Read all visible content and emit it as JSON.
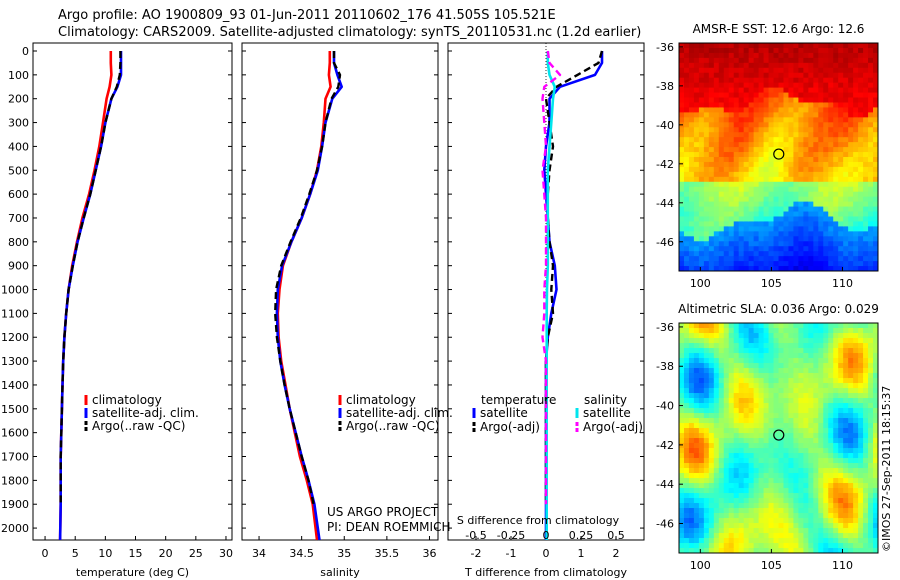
{
  "header": {
    "line1": "Argo profile: AO 1900809_93 01-Jun-2011 20110602_176 41.505S 105.521E",
    "line2": "Climatology: CARS2009. Satellite-adjusted climatology: synTS_20110531.nc (1.2d earlier)"
  },
  "side_text": "©IMOS 27-Sep-2011 18:15:37",
  "project_text": [
    "US ARGO PROJECT",
    "PI: DEAN ROEMMICH"
  ],
  "colors": {
    "climatology": "#ff0000",
    "satellite": "#0000ff",
    "argo": "#000000",
    "sat_salinity": "#00e5ee",
    "argo_salinity": "#ff00ff"
  },
  "chart_data": [
    {
      "type": "line",
      "name": "temperature",
      "xlabel": "temperature (deg C)",
      "xlim": [
        -2,
        31
      ],
      "xticks": [
        0,
        5,
        10,
        15,
        20,
        25,
        30
      ],
      "ylim": [
        0,
        2050
      ],
      "yticks": [
        0,
        100,
        200,
        300,
        400,
        500,
        600,
        700,
        800,
        900,
        1000,
        1100,
        1200,
        1300,
        1400,
        1500,
        1600,
        1700,
        1800,
        1900,
        2000
      ],
      "legend": [
        "climatology",
        "satellite-adj. clim.",
        "Argo(..raw -QC)"
      ],
      "series": [
        {
          "name": "climatology",
          "color": "#ff0000",
          "x": [
            10.9,
            10.9,
            11.0,
            10.7,
            10.2,
            9.6,
            9.0,
            8.2,
            7.3,
            6.2,
            5.3,
            4.5,
            3.9,
            3.5,
            3.2,
            3.0,
            2.9,
            2.8,
            2.7,
            2.6,
            2.6,
            2.5
          ],
          "y": [
            0,
            50,
            100,
            150,
            200,
            300,
            400,
            500,
            600,
            700,
            800,
            900,
            1000,
            1100,
            1200,
            1300,
            1400,
            1500,
            1600,
            1700,
            1900,
            2050
          ]
        },
        {
          "name": "satellite-adj. clim.",
          "color": "#0000ff",
          "x": [
            12.6,
            12.6,
            12.6,
            12.0,
            11.0,
            10.0,
            9.3,
            8.4,
            7.5,
            6.4,
            5.4,
            4.6,
            3.9,
            3.5,
            3.2,
            3.0,
            2.9,
            2.8,
            2.7,
            2.6,
            2.6,
            2.5
          ],
          "y": [
            0,
            50,
            100,
            150,
            200,
            300,
            400,
            500,
            600,
            700,
            800,
            900,
            1000,
            1100,
            1200,
            1300,
            1400,
            1500,
            1600,
            1700,
            1900,
            2050
          ]
        },
        {
          "name": "Argo(..raw -QC)",
          "color": "#000000",
          "x": [
            12.5,
            12.5,
            12.4,
            11.9,
            11.0,
            10.0,
            9.3,
            8.4,
            7.5,
            6.4,
            5.4,
            4.6,
            3.9,
            3.5,
            3.2,
            3.0,
            2.9,
            2.8,
            2.7,
            2.6,
            2.6
          ],
          "y": [
            0,
            50,
            100,
            150,
            200,
            300,
            400,
            500,
            600,
            700,
            800,
            900,
            1000,
            1100,
            1200,
            1300,
            1400,
            1500,
            1600,
            1700,
            1900
          ]
        }
      ]
    },
    {
      "type": "line",
      "name": "salinity",
      "xlabel": "salinity",
      "xlim": [
        33.8,
        36.1
      ],
      "xticks": [
        34,
        34.5,
        35,
        35.5,
        36
      ],
      "ylim": [
        0,
        2050
      ],
      "legend": [
        "climatology",
        "satellite-adj. clim.",
        "Argo(..raw -QC)"
      ],
      "series": [
        {
          "name": "climatology",
          "color": "#ff0000",
          "x": [
            34.83,
            34.83,
            34.82,
            34.84,
            34.78,
            34.76,
            34.73,
            34.68,
            34.6,
            34.5,
            34.38,
            34.28,
            34.24,
            34.22,
            34.23,
            34.26,
            34.31,
            34.36,
            34.42,
            34.48,
            34.56,
            34.63,
            34.68
          ],
          "y": [
            0,
            50,
            100,
            150,
            200,
            300,
            400,
            500,
            600,
            700,
            800,
            900,
            1000,
            1100,
            1200,
            1300,
            1400,
            1500,
            1600,
            1700,
            1800,
            1900,
            2050
          ]
        },
        {
          "name": "satellite-adj. clim.",
          "color": "#0000ff",
          "x": [
            34.88,
            34.88,
            34.92,
            34.97,
            34.86,
            34.78,
            34.74,
            34.69,
            34.6,
            34.5,
            34.38,
            34.27,
            34.22,
            34.21,
            34.22,
            34.25,
            34.3,
            34.36,
            34.43,
            34.5,
            34.58,
            34.65,
            34.71
          ],
          "y": [
            0,
            50,
            100,
            150,
            200,
            300,
            400,
            500,
            600,
            700,
            800,
            900,
            1000,
            1100,
            1200,
            1300,
            1400,
            1500,
            1600,
            1700,
            1800,
            1900,
            2050
          ]
        },
        {
          "name": "Argo(..raw -QC)",
          "color": "#000000",
          "x": [
            34.88,
            34.88,
            34.95,
            34.93,
            34.85,
            34.78,
            34.74,
            34.68,
            34.59,
            34.49,
            34.37,
            34.26,
            34.2,
            34.19,
            34.21,
            34.25,
            34.3,
            34.36,
            34.43,
            34.5,
            34.58,
            34.64
          ],
          "y": [
            0,
            50,
            100,
            150,
            200,
            300,
            400,
            500,
            600,
            700,
            800,
            900,
            1000,
            1100,
            1200,
            1300,
            1400,
            1500,
            1600,
            1700,
            1800,
            1900
          ]
        }
      ]
    },
    {
      "type": "line",
      "name": "difference",
      "xlabel": "T difference from climatology",
      "xlabel_top": "S difference from climatology",
      "xlim": [
        -2.8,
        2.8
      ],
      "xticks": [
        -2,
        -1,
        0,
        1,
        2
      ],
      "xticks_top": [
        -0.5,
        -0.25,
        0,
        0.25,
        0.5
      ],
      "ylim": [
        0,
        2050
      ],
      "legend_headers": [
        "temperature",
        "salinity"
      ],
      "legend": [
        "satellite",
        "Argo(-adj)",
        "satellite",
        "Argo(-adj)"
      ],
      "series": [
        {
          "name": "temperature satellite",
          "color": "#0000ff",
          "x": [
            1.6,
            1.6,
            1.4,
            0.4,
            0.1,
            0.1,
            0.0,
            -0.05,
            0.0,
            0.05,
            0.1,
            0.25,
            0.3,
            0.15,
            0.05,
            0.0,
            0.0,
            0.0,
            0.0,
            0.0,
            0.0,
            0.0
          ],
          "y": [
            0,
            50,
            100,
            150,
            200,
            300,
            400,
            500,
            600,
            700,
            800,
            900,
            1000,
            1100,
            1200,
            1300,
            1400,
            1500,
            1600,
            1700,
            1900,
            2050
          ]
        },
        {
          "name": "temperature Argo(-adj)",
          "color": "#000000",
          "x": [
            1.6,
            1.5,
            0.9,
            0.3,
            0.0,
            0.1,
            0.2,
            0.1,
            0.05,
            0.05,
            0.1,
            0.2,
            0.15,
            0.2,
            0.05,
            0.0,
            0.0,
            0.0,
            0.0,
            0.0,
            0.0
          ],
          "y": [
            0,
            50,
            100,
            150,
            200,
            300,
            400,
            500,
            600,
            700,
            800,
            900,
            1000,
            1100,
            1200,
            1300,
            1400,
            1500,
            1600,
            1700,
            1900
          ]
        },
        {
          "name": "salinity satellite",
          "color": "#00e5ee",
          "x": [
            0.05,
            0.05,
            0.1,
            0.25,
            0.2,
            0.15,
            0.1,
            0.05,
            0.05,
            0.05,
            0.05,
            0.05,
            0.03,
            0.02,
            0.02,
            0.02,
            0.02,
            0.02,
            0.02,
            0.02,
            0.02,
            0.02
          ],
          "y": [
            0,
            50,
            100,
            150,
            200,
            300,
            400,
            500,
            600,
            700,
            800,
            900,
            1000,
            1100,
            1200,
            1300,
            1400,
            1500,
            1600,
            1700,
            1900,
            2050
          ]
        },
        {
          "name": "salinity Argo(-adj)",
          "color": "#ff00ff",
          "x": [
            0.05,
            0.1,
            0.4,
            -0.05,
            -0.1,
            -0.05,
            0.0,
            -0.1,
            -0.05,
            0.0,
            0.0,
            0.0,
            -0.05,
            -0.05,
            -0.1,
            0.0,
            0.0,
            0.0,
            0.0,
            0.0,
            0.0
          ],
          "y": [
            0,
            50,
            100,
            150,
            200,
            300,
            400,
            500,
            600,
            700,
            800,
            900,
            1000,
            1100,
            1200,
            1300,
            1400,
            1500,
            1600,
            1700,
            1900
          ]
        }
      ]
    },
    {
      "type": "heatmap",
      "name": "sst-map",
      "title": "AMSR-E SST: 12.6 Argo: 12.6",
      "xlim": [
        98.5,
        112.5
      ],
      "ylim": [
        -47.5,
        -35.8
      ],
      "xticks": [
        100,
        105,
        110
      ],
      "yticks": [
        -36,
        -38,
        -40,
        -42,
        -44,
        -46
      ],
      "marker": {
        "lon": 105.52,
        "lat": -41.5
      }
    },
    {
      "type": "heatmap",
      "name": "sla-map",
      "title": "Altimetric SLA: 0.036 Argo: 0.029",
      "xlim": [
        98.5,
        112.5
      ],
      "ylim": [
        -47.5,
        -35.8
      ],
      "xticks": [
        100,
        105,
        110
      ],
      "yticks": [
        -36,
        -38,
        -40,
        -42,
        -44,
        -46
      ],
      "marker": {
        "lon": 105.52,
        "lat": -41.5
      }
    }
  ]
}
